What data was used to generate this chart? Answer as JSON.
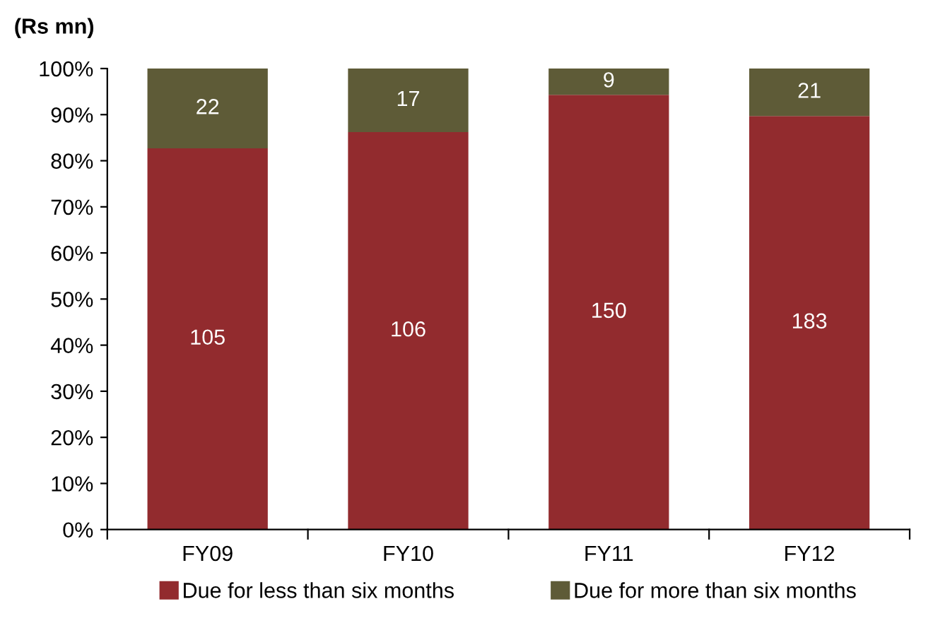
{
  "chart_data": {
    "type": "bar",
    "stacked": true,
    "title": "(Rs mn)",
    "categories": [
      "FY09",
      "FY10",
      "FY11",
      "FY12"
    ],
    "series": [
      {
        "name": "Due for less than six months",
        "color": "#922b2e",
        "values": [
          82.7,
          86.2,
          94.3,
          89.7
        ]
      },
      {
        "name": "Due for more than six months",
        "color": "#5e5b37",
        "values": [
          17.3,
          13.8,
          5.7,
          10.3
        ]
      }
    ],
    "annotations": [
      "105",
      "106",
      "150",
      "183",
      "22",
      "17",
      "9",
      "21"
    ],
    "ylim": [
      0,
      100
    ],
    "yticks": [
      {
        "value": 0,
        "label": "0%"
      },
      {
        "value": 10,
        "label": "10%"
      },
      {
        "value": 20,
        "label": "20%"
      },
      {
        "value": 30,
        "label": "30%"
      },
      {
        "value": 40,
        "label": "40%"
      },
      {
        "value": 50,
        "label": "50%"
      },
      {
        "value": 60,
        "label": "60%"
      },
      {
        "value": 70,
        "label": "70%"
      },
      {
        "value": 80,
        "label": "80%"
      },
      {
        "value": 90,
        "label": "90%"
      },
      {
        "value": 100,
        "label": "100%"
      }
    ],
    "grid": false,
    "legend": "bottom"
  }
}
